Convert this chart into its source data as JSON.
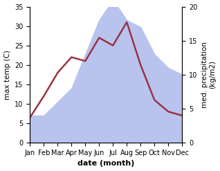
{
  "months": [
    "Jan",
    "Feb",
    "Mar",
    "Apr",
    "May",
    "Jun",
    "Jul",
    "Aug",
    "Sep",
    "Oct",
    "Nov",
    "Dec"
  ],
  "month_indices": [
    0,
    1,
    2,
    3,
    4,
    5,
    6,
    7,
    8,
    9,
    10,
    11
  ],
  "temperature": [
    6.5,
    12.0,
    18.0,
    22.0,
    21.0,
    27.0,
    25.0,
    31.0,
    20.0,
    11.0,
    8.0,
    7.0
  ],
  "precipitation": [
    4.0,
    4.0,
    6.0,
    8.0,
    13.0,
    18.0,
    21.0,
    18.0,
    17.0,
    13.0,
    11.0,
    10.0
  ],
  "temp_color": "#993344",
  "precip_color": "#b8c4ee",
  "temp_ylim": [
    0,
    35
  ],
  "precip_ylim": [
    0,
    20
  ],
  "temp_yticks": [
    0,
    5,
    10,
    15,
    20,
    25,
    30,
    35
  ],
  "precip_yticks": [
    0,
    5,
    10,
    15,
    20
  ],
  "ylabel_left": "max temp (C)",
  "ylabel_right": "med. precipitation\n(kg/m2)",
  "xlabel": "date (month)",
  "bg_color": "#ffffff",
  "temp_linewidth": 1.8,
  "xlabel_fontsize": 8,
  "ylabel_fontsize": 7.5,
  "tick_fontsize": 7
}
